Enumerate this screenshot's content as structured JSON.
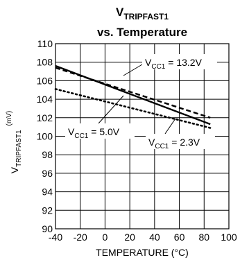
{
  "chart_data": {
    "type": "line",
    "title": {
      "line1_main": "V",
      "line1_sub": "TRIPFAST1",
      "line2": "vs. Temperature"
    },
    "xlabel": "TEMPERATURE (°C)",
    "ylabel": {
      "main": "V",
      "sub": "TRIPFAST1",
      "unit": "(mV)"
    },
    "xlim": [
      -40,
      100
    ],
    "ylim": [
      90,
      110
    ],
    "x_ticks": [
      -40,
      -20,
      0,
      20,
      40,
      60,
      80,
      100
    ],
    "y_ticks": [
      90,
      92,
      94,
      96,
      98,
      100,
      102,
      104,
      106,
      108,
      110
    ],
    "grid": true,
    "series": [
      {
        "name": "VCC1 = 13.2V",
        "label_main": "V",
        "label_sub": "CC1",
        "label_rest": " = 13.2V",
        "style": "dashed",
        "color": "#000000",
        "x": [
          -40,
          85
        ],
        "y": [
          107.4,
          102.0
        ]
      },
      {
        "name": "VCC1 = 5.0V",
        "label_main": "V",
        "label_sub": "CC1",
        "label_rest": " = 5.0V",
        "style": "solid",
        "color": "#000000",
        "x": [
          -40,
          85
        ],
        "y": [
          107.6,
          101.3
        ]
      },
      {
        "name": "VCC1 = 2.3V",
        "label_main": "V",
        "label_sub": "CC1",
        "label_rest": " = 2.3V",
        "style": "dotted",
        "color": "#000000",
        "x": [
          -40,
          85
        ],
        "y": [
          105.1,
          100.9
        ]
      }
    ]
  }
}
